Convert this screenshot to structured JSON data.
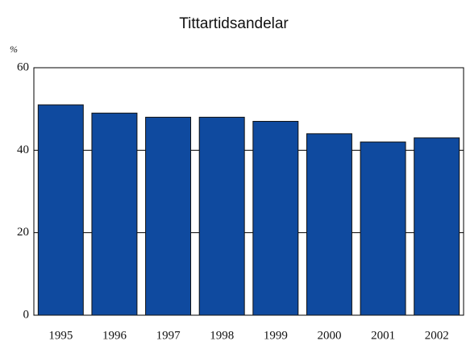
{
  "chart_data": {
    "type": "bar",
    "title": "Tittartidsandelar",
    "y_label": "%",
    "categories": [
      "1995",
      "1996",
      "1997",
      "1998",
      "1999",
      "2000",
      "2001",
      "2002"
    ],
    "values": [
      51,
      49,
      48,
      48,
      47,
      44,
      42,
      43
    ],
    "color": "#0f4a9f",
    "ylim": [
      0,
      60
    ],
    "yticks": [
      0,
      20,
      40,
      60
    ],
    "grid": true
  }
}
